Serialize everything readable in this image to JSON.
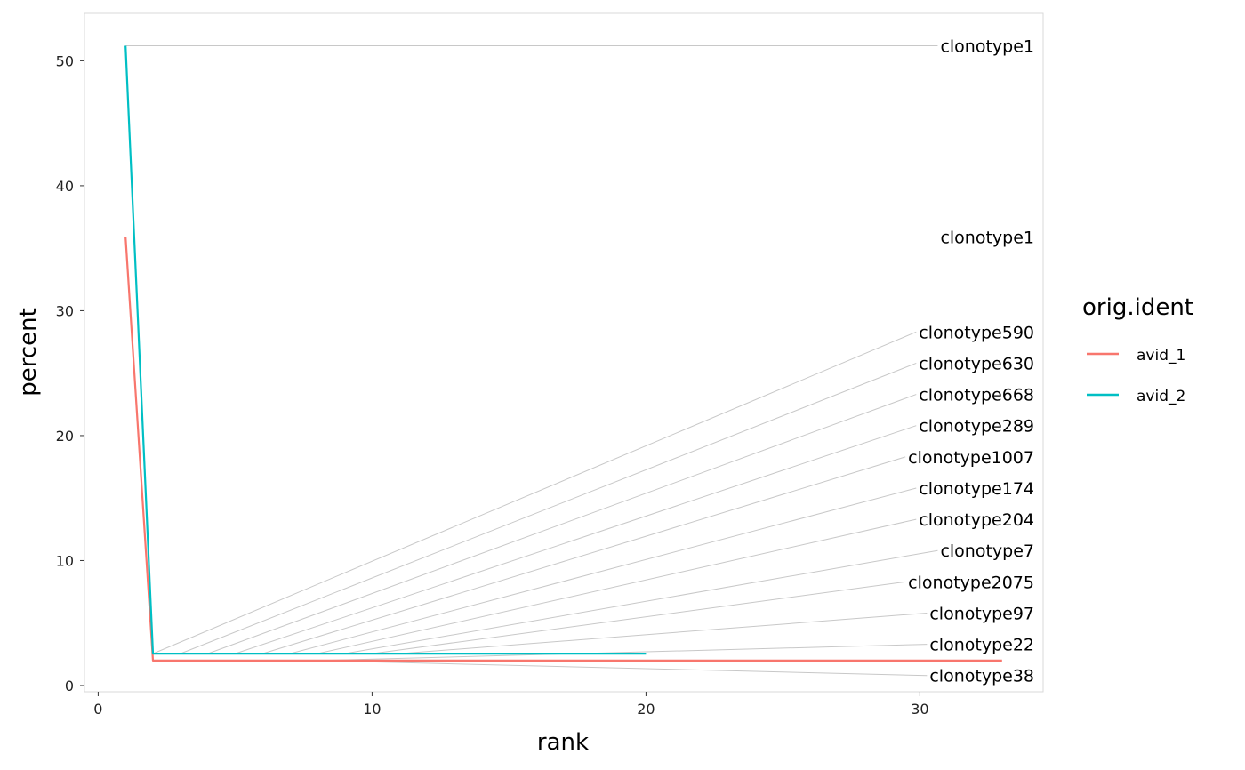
{
  "chart_data": {
    "type": "line",
    "xlabel": "rank",
    "ylabel": "percent",
    "xlim": [
      -0.5,
      34.5
    ],
    "ylim": [
      -0.5,
      53.8
    ],
    "x_ticks": [
      0,
      10,
      20,
      30
    ],
    "y_ticks": [
      0,
      10,
      20,
      30,
      40,
      50
    ],
    "grid": false,
    "legend": {
      "title": "orig.ident",
      "position": "right"
    },
    "series": [
      {
        "name": "avid_1",
        "color": "#F8766D",
        "points": [
          [
            1,
            35.9
          ],
          [
            2,
            2.0
          ],
          [
            3,
            2.0
          ],
          [
            4,
            2.0
          ],
          [
            5,
            2.0
          ],
          [
            6,
            2.0
          ],
          [
            7,
            2.0
          ],
          [
            8,
            2.0
          ],
          [
            10,
            2.0
          ],
          [
            15,
            2.0
          ],
          [
            20,
            2.0
          ],
          [
            25,
            2.0
          ],
          [
            30,
            2.0
          ],
          [
            33,
            2.0
          ]
        ]
      },
      {
        "name": "avid_2",
        "color": "#00BFC4",
        "points": [
          [
            1,
            51.2
          ],
          [
            2,
            2.55
          ],
          [
            3,
            2.55
          ],
          [
            4,
            2.55
          ],
          [
            5,
            2.55
          ],
          [
            6,
            2.55
          ],
          [
            7,
            2.55
          ],
          [
            8,
            2.55
          ],
          [
            10,
            2.55
          ],
          [
            15,
            2.55
          ],
          [
            20,
            2.55
          ]
        ]
      }
    ],
    "labels": [
      {
        "text": "clonotype1",
        "from": [
          1,
          51.2
        ],
        "to_y": 51.2
      },
      {
        "text": "clonotype1",
        "from": [
          1,
          35.9
        ],
        "to_y": 35.9
      },
      {
        "text": "clonotype590",
        "from": [
          2,
          2.55
        ],
        "to_y": 28.3
      },
      {
        "text": "clonotype630",
        "from": [
          3,
          2.55
        ],
        "to_y": 25.8
      },
      {
        "text": "clonotype668",
        "from": [
          4,
          2.55
        ],
        "to_y": 23.3
      },
      {
        "text": "clonotype289",
        "from": [
          5,
          2.55
        ],
        "to_y": 20.8
      },
      {
        "text": "clonotype1007",
        "from": [
          6,
          2.55
        ],
        "to_y": 18.3
      },
      {
        "text": "clonotype174",
        "from": [
          7,
          2.55
        ],
        "to_y": 15.8
      },
      {
        "text": "clonotype204",
        "from": [
          8,
          2.55
        ],
        "to_y": 13.3
      },
      {
        "text": "clonotype7",
        "from": [
          9,
          2.55
        ],
        "to_y": 10.8
      },
      {
        "text": "clonotype2075",
        "from": [
          10,
          2.55
        ],
        "to_y": 8.3
      },
      {
        "text": "clonotype97",
        "from": [
          11,
          2.55
        ],
        "to_y": 5.8
      },
      {
        "text": "clonotype22",
        "from": [
          8,
          2.0
        ],
        "to_y": 3.3
      },
      {
        "text": "clonotype38",
        "from": [
          8,
          2.0
        ],
        "to_y": 0.8
      }
    ]
  }
}
